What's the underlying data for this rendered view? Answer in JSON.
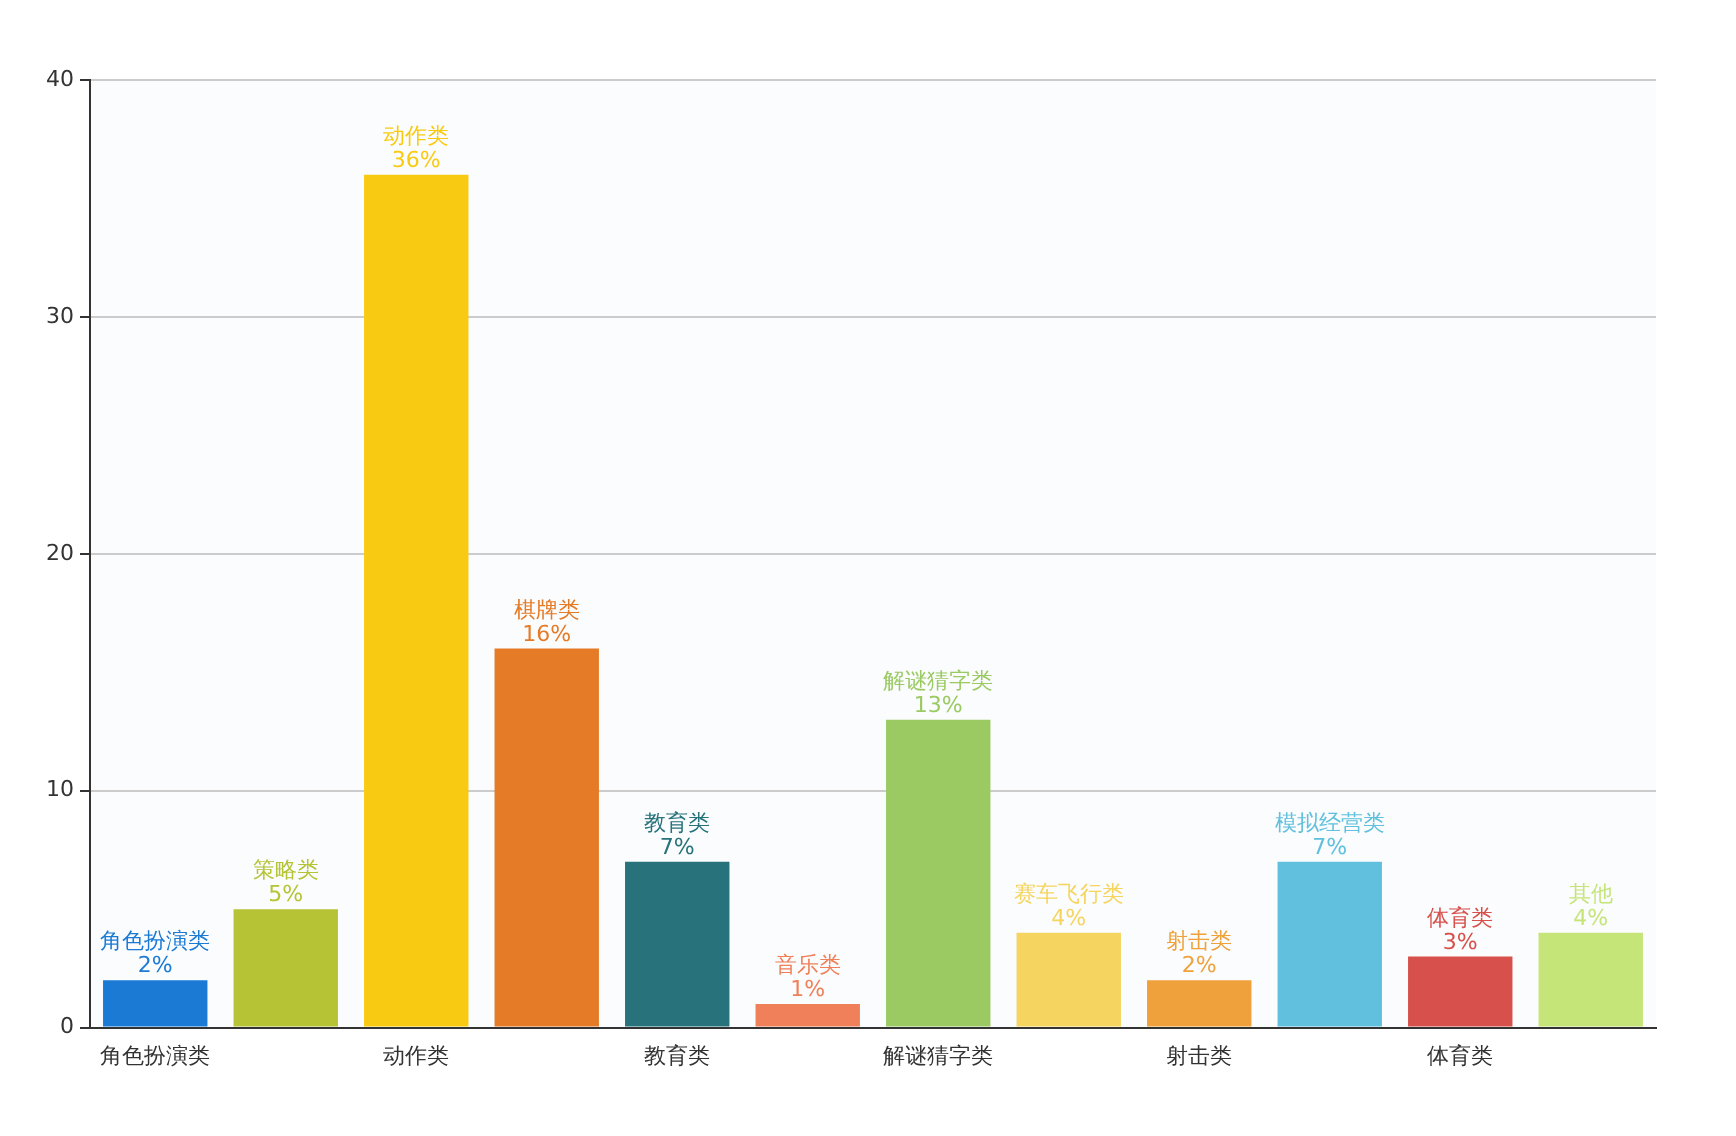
{
  "chart_data": {
    "type": "bar",
    "categories": [
      "角色扮演类",
      "策略类",
      "动作类",
      "棋牌类",
      "教育类",
      "音乐类",
      "解谜猜字类",
      "赛车飞行类",
      "射击类",
      "模拟经营类",
      "体育类",
      "其他"
    ],
    "values": [
      2,
      5,
      36,
      16,
      7,
      1,
      13,
      4,
      2,
      7,
      3,
      4
    ],
    "colors": [
      "#1a7ad4",
      "#b5c334",
      "#f8cb12",
      "#e57b27",
      "#27727b",
      "#f0805a",
      "#9bca63",
      "#f5d55f",
      "#efa13b",
      "#60c0dd",
      "#d7504b",
      "#c6e579"
    ],
    "value_labels": [
      "2%",
      "5%",
      "36%",
      "16%",
      "7%",
      "1%",
      "13%",
      "4%",
      "2%",
      "7%",
      "3%",
      "4%"
    ],
    "ylim": [
      0,
      40
    ],
    "yticks": [
      0,
      10,
      20,
      30,
      40
    ],
    "grid": "y",
    "legend": false
  }
}
